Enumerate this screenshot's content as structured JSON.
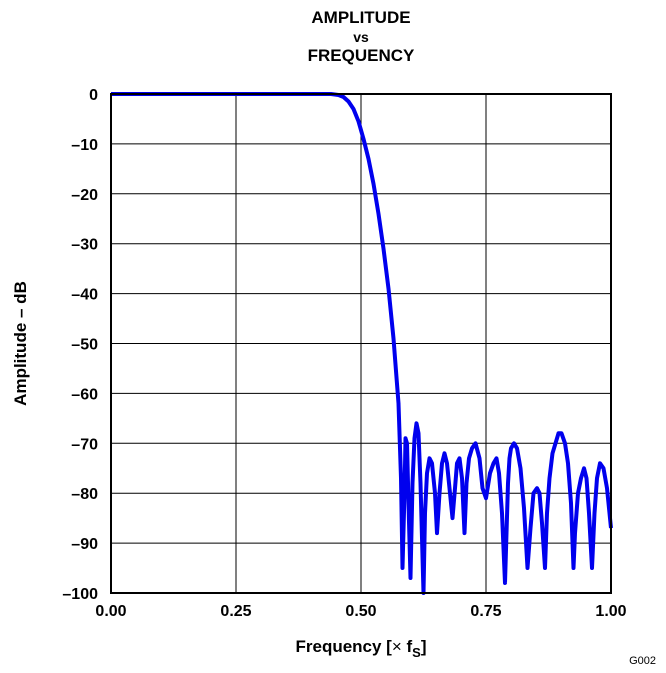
{
  "chart_data": {
    "type": "line",
    "title_lines": [
      "AMPLITUDE",
      "vs",
      "FREQUENCY"
    ],
    "xlabel_main": "Frequency [",
    "xlabel_times": "×",
    "xlabel_f": " f",
    "xlabel_sub": "S",
    "xlabel_close": "]",
    "ylabel": "Amplitude – dB",
    "figure_id": "G002",
    "xlim": [
      0,
      1
    ],
    "ylim": [
      -100,
      0
    ],
    "x_ticks": [
      "0.00",
      "0.25",
      "0.50",
      "0.75",
      "1.00"
    ],
    "x_tick_values": [
      0,
      0.25,
      0.5,
      0.75,
      1.0
    ],
    "y_ticks": [
      "0",
      "–10",
      "–20",
      "–30",
      "–40",
      "–50",
      "–60",
      "–70",
      "–80",
      "–90",
      "–100"
    ],
    "y_tick_values": [
      0,
      -10,
      -20,
      -30,
      -40,
      -50,
      -60,
      -70,
      -80,
      -90,
      -100
    ],
    "grid": true,
    "line_color": "#0000ee",
    "series": [
      {
        "x": [
          0.0,
          0.1,
          0.2,
          0.3,
          0.4,
          0.44,
          0.455,
          0.465,
          0.475,
          0.485,
          0.495,
          0.505,
          0.515,
          0.525,
          0.535,
          0.545,
          0.555,
          0.565,
          0.575,
          0.58,
          0.583,
          0.587,
          0.589,
          0.592,
          0.595,
          0.599,
          0.603,
          0.607,
          0.611,
          0.615,
          0.619,
          0.625,
          0.628,
          0.632,
          0.637,
          0.642,
          0.648,
          0.652,
          0.657,
          0.662,
          0.667,
          0.672,
          0.678,
          0.683,
          0.688,
          0.692,
          0.697,
          0.702,
          0.707,
          0.711,
          0.716,
          0.722,
          0.729,
          0.737,
          0.743,
          0.75,
          0.758,
          0.765,
          0.771,
          0.776,
          0.782,
          0.788,
          0.794,
          0.797,
          0.8,
          0.806,
          0.812,
          0.819,
          0.826,
          0.833,
          0.839,
          0.845,
          0.852,
          0.857,
          0.862,
          0.868,
          0.872,
          0.877,
          0.883,
          0.889,
          0.895,
          0.901,
          0.908,
          0.914,
          0.92,
          0.925,
          0.928,
          0.934,
          0.94,
          0.946,
          0.951,
          0.956,
          0.962,
          0.967,
          0.972,
          0.978,
          0.985,
          0.992,
          1.0
        ],
        "y": [
          0,
          0,
          0,
          0,
          0,
          0,
          -0.2,
          -0.6,
          -1.5,
          -3,
          -5.5,
          -9,
          -13,
          -18,
          -24,
          -31,
          -39,
          -49,
          -62,
          -77,
          -95,
          -80,
          -69,
          -70,
          -82,
          -97,
          -78,
          -69,
          -66,
          -68,
          -78,
          -100,
          -84,
          -76,
          -73,
          -74,
          -80,
          -88,
          -80,
          -74,
          -72,
          -74,
          -80,
          -85,
          -79,
          -74,
          -73,
          -77,
          -88,
          -78,
          -73,
          -71,
          -70,
          -73,
          -79,
          -81,
          -76,
          -74,
          -73,
          -76,
          -84,
          -98,
          -78,
          -73,
          -71,
          -70,
          -71,
          -75,
          -83,
          -95,
          -87,
          -80,
          -79,
          -80,
          -86,
          -95,
          -84,
          -77,
          -72,
          -70,
          -68,
          -68,
          -70,
          -74,
          -82,
          -95,
          -88,
          -80,
          -77,
          -75,
          -77,
          -84,
          -95,
          -84,
          -77,
          -74,
          -75,
          -79,
          -87
        ]
      }
    ]
  }
}
